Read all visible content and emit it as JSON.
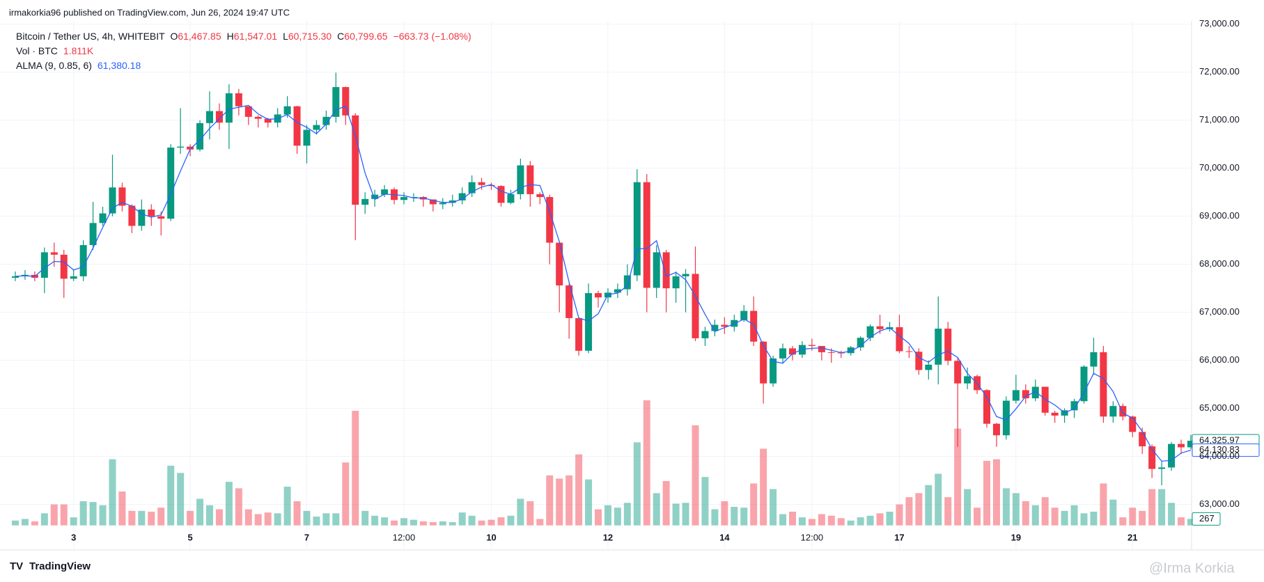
{
  "header": {
    "publisher": "irmakorkia96 published on TradingView.com, Jun 26, 2024 19:47 UTC",
    "brand": "TradingView",
    "watermark": "@Irma Korkia"
  },
  "chart_data": {
    "type": "candlestick",
    "symbol": "Bitcoin / Tether US, 4h, WHITEBIT",
    "ohlc_legend": [
      {
        "label": "O",
        "value": "61,467.85"
      },
      {
        "label": "H",
        "value": "61,547.01"
      },
      {
        "label": "L",
        "value": "60,715.30"
      },
      {
        "label": "C",
        "value": "60,799.65"
      }
    ],
    "change": "−663.73 (−1.08%)",
    "volume_legend": {
      "label": "Vol · BTC",
      "value": "1.811K"
    },
    "alma_legend": {
      "label": "ALMA (9, 0.85, 6)",
      "value": "61,380.18"
    },
    "up_color": "#089981",
    "down_color": "#f23645",
    "alma_color": "#2962ff",
    "open": [
      67720,
      67750,
      67780,
      67720,
      68250,
      68200,
      67700,
      67750,
      68400,
      68860,
      69060,
      69600,
      69220,
      68800,
      69140,
      69000,
      68950,
      70430,
      70450,
      70390,
      70940,
      71190,
      70950,
      71560,
      71290,
      71070,
      71030,
      70950,
      71120,
      71290,
      70470,
      70800,
      70900,
      71070,
      71690,
      71100,
      69240,
      69360,
      69450,
      69560,
      69340,
      69400,
      69400,
      69350,
      69250,
      69280,
      69330,
      69480,
      69710,
      69650,
      69630,
      69280,
      69460,
      70060,
      69460,
      69400,
      68450,
      67560,
      66880,
      66200,
      67400,
      67310,
      67410,
      67480,
      67770,
      69710,
      67510,
      68250,
      67500,
      67750,
      67800,
      66460,
      66610,
      66740,
      66700,
      66840,
      67030,
      66390,
      65520,
      66040,
      66250,
      66120,
      66320,
      66300,
      66170,
      66160,
      66150,
      66270,
      66470,
      66710,
      66650,
      66690,
      66190,
      66180,
      65800,
      65910,
      66660,
      65990,
      65520,
      65670,
      65380,
      64680,
      64440,
      65160,
      65380,
      65210,
      65450,
      64910,
      64850,
      64960,
      65150,
      65870,
      66170,
      64830,
      65050,
      64830,
      64510,
      64210,
      63740,
      63770,
      64260,
      64190
    ],
    "high": [
      67850,
      67880,
      67850,
      68350,
      68450,
      68300,
      67900,
      68500,
      69300,
      69200,
      70280,
      69700,
      69250,
      69350,
      69250,
      69100,
      70500,
      71250,
      70500,
      71000,
      71600,
      71350,
      71750,
      71650,
      71250,
      71100,
      71050,
      71250,
      71500,
      71300,
      70900,
      71000,
      71200,
      71990,
      71700,
      71150,
      69500,
      69550,
      69650,
      69600,
      69500,
      69480,
      69420,
      69350,
      69380,
      69450,
      69600,
      69850,
      69800,
      69700,
      69650,
      69550,
      70200,
      70150,
      69500,
      69450,
      68450,
      67600,
      66900,
      67600,
      67450,
      67500,
      67600,
      68000,
      69980,
      69880,
      68400,
      68300,
      67850,
      67900,
      68370,
      66700,
      66850,
      66900,
      66950,
      67150,
      67330,
      66400,
      66100,
      66350,
      66300,
      66400,
      66450,
      66300,
      66250,
      66200,
      66300,
      66500,
      66750,
      66950,
      66800,
      66950,
      66300,
      66250,
      66000,
      67330,
      66800,
      66050,
      65850,
      65700,
      65400,
      64700,
      65250,
      65700,
      65500,
      65600,
      65450,
      64950,
      65000,
      65200,
      65900,
      66470,
      66300,
      65150,
      65100,
      64850,
      64600,
      64250,
      63900,
      64300,
      64350,
      64450
    ],
    "low": [
      67650,
      67680,
      67650,
      67400,
      67950,
      67300,
      67650,
      67650,
      68300,
      68800,
      69000,
      69100,
      68650,
      68700,
      68800,
      68600,
      68900,
      70300,
      70250,
      70350,
      70600,
      70800,
      70400,
      71100,
      70900,
      70850,
      70850,
      70850,
      71050,
      70300,
      70100,
      70700,
      70800,
      70950,
      70900,
      68500,
      69050,
      69200,
      69400,
      69250,
      69250,
      69300,
      69200,
      69100,
      69150,
      69200,
      69250,
      69400,
      69550,
      69550,
      69200,
      69250,
      69350,
      69200,
      69250,
      68000,
      67000,
      66450,
      66100,
      66150,
      67100,
      67200,
      67300,
      67350,
      67650,
      67000,
      67300,
      67000,
      67200,
      67000,
      66400,
      66300,
      66500,
      66550,
      66600,
      66800,
      66300,
      65100,
      65450,
      65950,
      66000,
      66050,
      66200,
      66000,
      65950,
      66050,
      66100,
      66200,
      66400,
      66550,
      66600,
      66150,
      66050,
      65700,
      65600,
      65500,
      65900,
      64200,
      65400,
      65300,
      64600,
      64200,
      64350,
      65100,
      65100,
      65150,
      64850,
      64700,
      64700,
      64800,
      65100,
      65700,
      64700,
      64700,
      64750,
      64400,
      64050,
      63550,
      63400,
      63700,
      64050,
      64150
    ],
    "close": [
      67750,
      67780,
      67720,
      68250,
      68200,
      67700,
      67750,
      68400,
      68860,
      69060,
      69600,
      69220,
      68800,
      69140,
      69000,
      68950,
      70430,
      70450,
      70390,
      70940,
      71190,
      70950,
      71560,
      71290,
      71070,
      71030,
      70950,
      71120,
      71290,
      70470,
      70800,
      70900,
      71070,
      71690,
      71100,
      69240,
      69360,
      69450,
      69560,
      69340,
      69400,
      69400,
      69350,
      69250,
      69280,
      69330,
      69480,
      69710,
      69650,
      69630,
      69280,
      69460,
      70060,
      69460,
      69400,
      68450,
      67560,
      66880,
      66200,
      67400,
      67310,
      67410,
      67480,
      67770,
      69710,
      67510,
      68250,
      67500,
      67750,
      67800,
      66460,
      66610,
      66740,
      66700,
      66840,
      67030,
      66390,
      65520,
      66040,
      66250,
      66120,
      66320,
      66300,
      66170,
      66160,
      66150,
      66270,
      66470,
      66710,
      66650,
      66690,
      66190,
      66180,
      65800,
      65910,
      66660,
      65990,
      65520,
      65670,
      65380,
      64680,
      64440,
      65160,
      65380,
      65210,
      65450,
      64910,
      64850,
      64960,
      65150,
      65870,
      66170,
      64830,
      65050,
      64830,
      64510,
      64210,
      63740,
      63770,
      64260,
      64190,
      64325.97
    ],
    "close_label": "64,325.97",
    "alma": [
      67750,
      67760,
      67750,
      67920,
      68060,
      68050,
      67880,
      67950,
      68340,
      68770,
      69170,
      69290,
      69210,
      69050,
      68980,
      69030,
      69460,
      69940,
      70400,
      70590,
      70830,
      71030,
      71230,
      71270,
      71310,
      71130,
      71020,
      71030,
      71120,
      70950,
      70850,
      70720,
      70920,
      71220,
      71290,
      70680,
      69900,
      69350,
      69460,
      69450,
      69430,
      69380,
      69380,
      69330,
      69290,
      69290,
      69360,
      69510,
      69610,
      69660,
      69520,
      69460,
      69600,
      69660,
      69640,
      69100,
      68470,
      67630,
      66880,
      66820,
      66970,
      67370,
      67400,
      67550,
      68320,
      68330,
      68490,
      67750,
      67830,
      67680,
      67340,
      66960,
      66600,
      66680,
      66760,
      66860,
      66750,
      66310,
      65980,
      65940,
      66140,
      66230,
      66250,
      66260,
      66210,
      66160,
      66190,
      66300,
      66480,
      66610,
      66680,
      66510,
      66350,
      66060,
      65960,
      66120,
      66190,
      66060,
      65730,
      65520,
      65240,
      64830,
      64760,
      64990,
      65250,
      65350,
      65190,
      65070,
      64910,
      64990,
      65330,
      65730,
      65620,
      65350,
      64900,
      64800,
      64520,
      64150,
      63900,
      63920,
      64070,
      64130.83
    ],
    "alma_label": "64,130.83",
    "volume": [
      198,
      264,
      165,
      495,
      858,
      858,
      330,
      990,
      957,
      825,
      2706,
      1386,
      594,
      594,
      561,
      726,
      2442,
      2145,
      594,
      1089,
      825,
      660,
      1782,
      1518,
      660,
      462,
      528,
      495,
      1584,
      990,
      594,
      363,
      495,
      495,
      2574,
      4686,
      594,
      396,
      330,
      198,
      297,
      231,
      165,
      132,
      165,
      132,
      528,
      396,
      198,
      231,
      330,
      396,
      1089,
      990,
      264,
      2046,
      1914,
      2046,
      2904,
      1881,
      660,
      825,
      726,
      924,
      3399,
      5115,
      1320,
      1815,
      891,
      924,
      4092,
      1980,
      660,
      990,
      759,
      726,
      1716,
      3135,
      1485,
      462,
      561,
      330,
      264,
      462,
      396,
      297,
      198,
      330,
      396,
      495,
      561,
      858,
      1155,
      1320,
      1650,
      2112,
      1155,
      3960,
      1485,
      726,
      2640,
      2706,
      1518,
      1320,
      990,
      825,
      1155,
      726,
      594,
      825,
      495,
      561,
      1716,
      1056,
      330,
      726,
      594,
      1485,
      1485,
      924,
      330,
      267
    ],
    "volume_ylim": [
      0,
      20500
    ],
    "ylim": [
      63000,
      73000
    ],
    "yticks": [
      {
        "value": 63000,
        "label": "63,000.00"
      },
      {
        "value": 64000,
        "label": "64,000.00"
      },
      {
        "value": 65000,
        "label": "65,000.00"
      },
      {
        "value": 66000,
        "label": "66,000.00"
      },
      {
        "value": 67000,
        "label": "67,000.00"
      },
      {
        "value": 68000,
        "label": "68,000.00"
      },
      {
        "value": 69000,
        "label": "69,000.00"
      },
      {
        "value": 70000,
        "label": "70,000.00"
      },
      {
        "value": 71000,
        "label": "71,000.00"
      },
      {
        "value": 72000,
        "label": "72,000.00"
      },
      {
        "value": 73000,
        "label": "73,000.00"
      }
    ],
    "xticks": [
      {
        "value": 6,
        "label": "3"
      },
      {
        "value": 18,
        "label": "5"
      },
      {
        "value": 30,
        "label": "7"
      },
      {
        "value": 40,
        "label": "12:00"
      },
      {
        "value": 49,
        "label": "10"
      },
      {
        "value": 61,
        "label": "12"
      },
      {
        "value": 73,
        "label": "14"
      },
      {
        "value": 82,
        "label": "12:00"
      },
      {
        "value": 91,
        "label": "17"
      },
      {
        "value": 103,
        "label": "19"
      },
      {
        "value": 115,
        "label": "21"
      }
    ],
    "grid": true
  }
}
